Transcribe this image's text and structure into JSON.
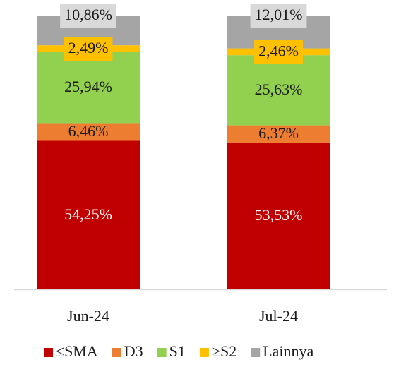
{
  "chart_data": {
    "type": "stacked_bar",
    "categories": [
      "Jun-24",
      "Jul-24"
    ],
    "ylim": [
      0,
      100
    ],
    "series": [
      {
        "name": "≤SMA",
        "color": "#c00000",
        "label_color": "#ffffff",
        "values": [
          54.25,
          53.53
        ],
        "value_labels": [
          "54,25%",
          "53,53%"
        ]
      },
      {
        "name": "D3",
        "color": "#ed7d31",
        "label_color": "#1a1a1a",
        "values": [
          6.46,
          6.37
        ],
        "value_labels": [
          "6,46%",
          "6,37%"
        ]
      },
      {
        "name": "S1",
        "color": "#92d050",
        "label_color": "#1a1a1a",
        "values": [
          25.94,
          25.63
        ],
        "value_labels": [
          "25,94%",
          "25,63%"
        ]
      },
      {
        "name": "≥S2",
        "color": "#ffc000",
        "label_color": "#1a1a1a",
        "label_background": "#ffc000",
        "values": [
          2.49,
          2.46
        ],
        "value_labels": [
          "2,49%",
          "2,46%"
        ]
      },
      {
        "name": "Lainnya",
        "color": "#a5a5a5",
        "label_color": "#1a1a1a",
        "label_background": "#d9d9d9",
        "values": [
          10.86,
          12.01
        ],
        "value_labels": [
          "10,86%",
          "12,01%"
        ]
      }
    ]
  }
}
